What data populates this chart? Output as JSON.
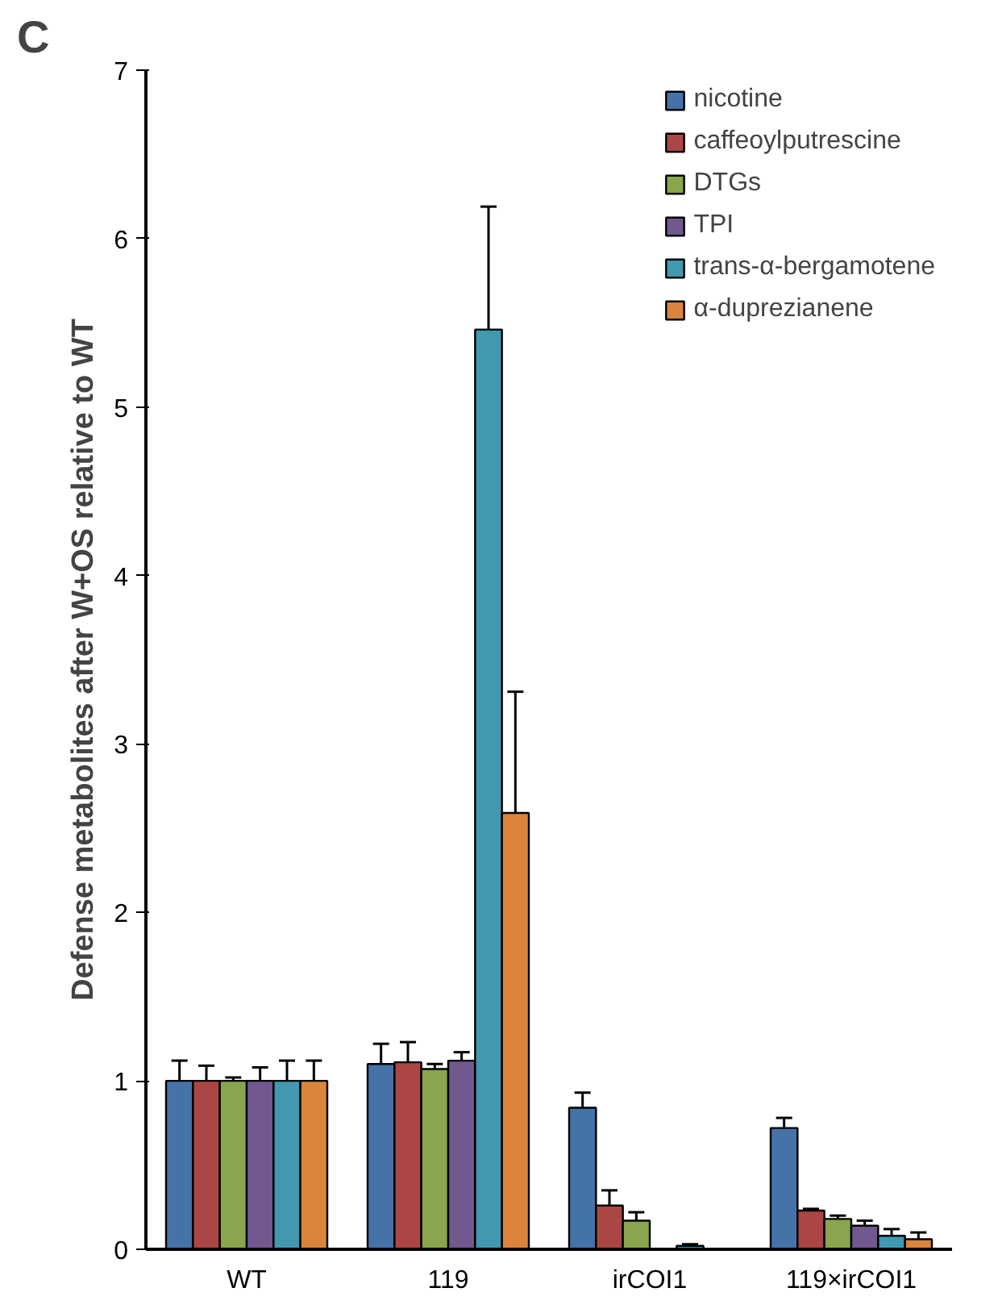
{
  "chart_data": {
    "type": "bar",
    "annotations": [
      "C"
    ],
    "ylabel": "Defense metabolites after W+OS relative to WT",
    "categories": [
      "WT",
      "119",
      "irCOI1",
      "119×irCOI1"
    ],
    "ylim": [
      0,
      7
    ],
    "yticks": [
      0,
      1,
      2,
      3,
      4,
      5,
      6,
      7
    ],
    "grid": false,
    "legend": "top right",
    "series": [
      {
        "name": "nicotine",
        "color": "#4572a7",
        "values": [
          1,
          1.1,
          0.84,
          0.72
        ],
        "errors": [
          0.12,
          0.12,
          0.09,
          0.06
        ]
      },
      {
        "name": "caffeoylputrescine",
        "color": "#aa4643",
        "values": [
          1,
          1.11,
          0.26,
          0.23
        ],
        "errors": [
          0.09,
          0.12,
          0.09,
          0.01
        ]
      },
      {
        "name": "DTGs",
        "color": "#89a54e",
        "values": [
          1,
          1.07,
          0.17,
          0.18
        ],
        "errors": [
          0.02,
          0.03,
          0.05,
          0.02
        ]
      },
      {
        "name": "TPI",
        "color": "#71588f",
        "values": [
          1,
          1.12,
          null,
          0.14
        ],
        "errors": [
          0.08,
          0.05,
          null,
          0.03
        ]
      },
      {
        "name": "trans-α-bergamotene",
        "color": "#4198af",
        "values": [
          1,
          5.46,
          0.02,
          0.08
        ],
        "errors": [
          0.12,
          0.73,
          0.01,
          0.04
        ]
      },
      {
        "name": "α-duprezianene",
        "color": "#db843d",
        "values": [
          1,
          2.59,
          null,
          0.06
        ],
        "errors": [
          0.12,
          0.72,
          null,
          0.04
        ]
      }
    ]
  }
}
